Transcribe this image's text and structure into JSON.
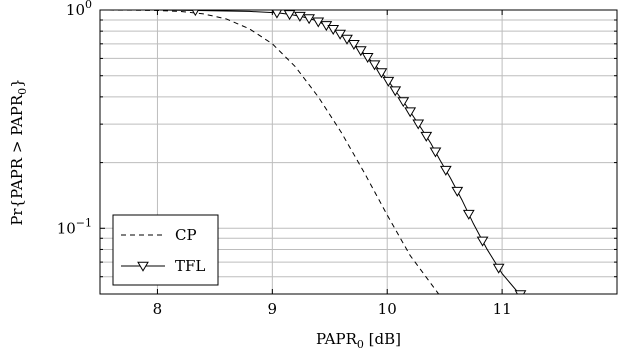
{
  "chart_data": {
    "type": "line",
    "title": "",
    "xlabel_main": "PAPR",
    "xlabel_sub": "0",
    "xlabel_unit": " [dB]",
    "ylabel_prefix": "Pr{PAPR > PAPR",
    "ylabel_sub": "0",
    "ylabel_suffix": "}",
    "xlim": [
      7.5,
      12.0
    ],
    "ylim": [
      0.05,
      1.0
    ],
    "y_scale": "log",
    "grid": true,
    "legend_position": "bottom-left",
    "x_ticks": [
      {
        "value": 8,
        "label": "8"
      },
      {
        "value": 9,
        "label": "9"
      },
      {
        "value": 10,
        "label": "10"
      },
      {
        "value": 11,
        "label": "11"
      }
    ],
    "y_ticks": [
      {
        "value": 1.0,
        "base": "10",
        "exp": "0"
      },
      {
        "value": 0.1,
        "base": "10",
        "exp": "−1"
      }
    ],
    "y_minor_ticks": [
      0.06,
      0.07,
      0.08,
      0.09,
      0.2,
      0.3,
      0.4,
      0.5,
      0.6,
      0.7,
      0.8,
      0.9
    ],
    "series": [
      {
        "name": "CP",
        "style": "dashed",
        "marker": "none",
        "color": "#000000",
        "x": [
          7.5,
          7.8,
          8.0,
          8.2,
          8.4,
          8.6,
          8.8,
          9.0,
          9.2,
          9.4,
          9.6,
          9.8,
          10.0,
          10.2,
          10.46
        ],
        "y": [
          1.0,
          0.998,
          0.995,
          0.985,
          0.96,
          0.91,
          0.82,
          0.7,
          0.55,
          0.4,
          0.275,
          0.18,
          0.115,
          0.075,
          0.049
        ]
      },
      {
        "name": "TFL",
        "style": "solid",
        "marker": "triangle-down",
        "color": "#000000",
        "x": [
          7.5,
          8.0,
          8.35,
          8.6,
          8.8,
          9.05,
          9.15,
          9.25,
          9.35,
          9.42,
          9.48,
          9.54,
          9.6,
          9.66,
          9.72,
          9.78,
          9.84,
          9.9,
          9.96,
          10.02,
          10.08,
          10.15,
          10.22,
          10.3,
          10.38,
          10.46,
          10.55,
          10.65,
          10.75,
          10.87,
          11.0,
          11.15,
          11.27
        ],
        "y": [
          1.0,
          1.0,
          0.995,
          0.99,
          0.985,
          0.97,
          0.955,
          0.935,
          0.905,
          0.875,
          0.845,
          0.81,
          0.77,
          0.73,
          0.69,
          0.645,
          0.6,
          0.555,
          0.51,
          0.465,
          0.42,
          0.375,
          0.33,
          0.285,
          0.245,
          0.205,
          0.17,
          0.135,
          0.105,
          0.08,
          0.062,
          0.05,
          0.047
        ],
        "marker_x": [
          8.33,
          9.04,
          9.15,
          9.24,
          9.32,
          9.4,
          9.47,
          9.53,
          9.59,
          9.65,
          9.71,
          9.77,
          9.83,
          9.89,
          9.95,
          10.01,
          10.07,
          10.14,
          10.2,
          10.27,
          10.34,
          10.42,
          10.51,
          10.61,
          10.71,
          10.83,
          10.97,
          11.16
        ]
      }
    ]
  }
}
